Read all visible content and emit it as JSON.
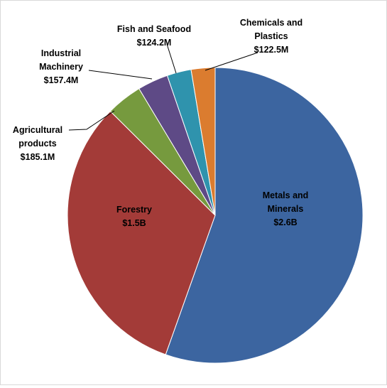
{
  "chart_data": {
    "type": "pie",
    "title": "",
    "slices": [
      {
        "label_lines": [
          "Metals and",
          "Minerals"
        ],
        "value_label": "$2.6B",
        "value": 2600,
        "color": "#3c65a0"
      },
      {
        "label_lines": [
          "Forestry"
        ],
        "value_label": "$1.5B",
        "value": 1500,
        "color": "#a33b38"
      },
      {
        "label_lines": [
          "Agricultural",
          "products"
        ],
        "value_label": "$185.1M",
        "value": 185.1,
        "color": "#769a3e"
      },
      {
        "label_lines": [
          "Industrial",
          "Machinery"
        ],
        "value_label": "$157.4M",
        "value": 157.4,
        "color": "#5e4a86"
      },
      {
        "label_lines": [
          "Fish and Seafood"
        ],
        "value_label": "$124.2M",
        "value": 124.2,
        "color": "#2f93ad"
      },
      {
        "label_lines": [
          "Chemicals and",
          "Plastics"
        ],
        "value_label": "$122.5M",
        "value": 122.5,
        "color": "#db7c2f"
      }
    ],
    "units": "USD"
  }
}
